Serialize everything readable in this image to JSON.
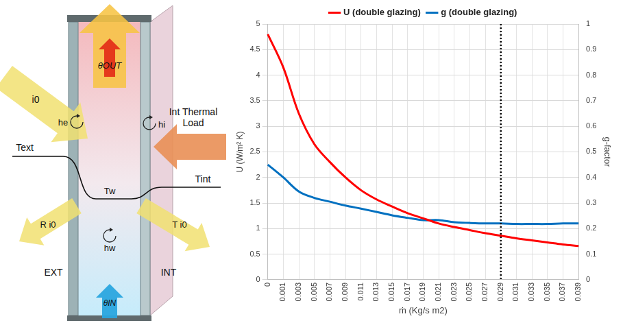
{
  "chart_data": {
    "type": "line",
    "x_label": "ṁ (Kg/s m2)",
    "y_label": "U (W/m² K)",
    "y2_label": "g-factor",
    "categories": [
      0,
      0.001,
      0.003,
      0.005,
      0.007,
      0.009,
      0.011,
      0.013,
      0.015,
      0.017,
      0.019,
      0.021,
      0.023,
      0.025,
      0.027,
      0.029,
      0.031,
      0.033,
      0.035,
      0.037,
      0.039
    ],
    "series": [
      {
        "name": "U (double glazing)",
        "color": "#ff0000",
        "values": [
          4.8,
          4.15,
          3.25,
          2.65,
          2.3,
          2.0,
          1.75,
          1.57,
          1.43,
          1.3,
          1.2,
          1.1,
          1.03,
          0.97,
          0.91,
          0.86,
          0.81,
          0.77,
          0.73,
          0.69,
          0.66
        ]
      },
      {
        "name": "g (double glazing)",
        "color": "#0070c0",
        "axis": "y2",
        "values": [
          0.45,
          0.4,
          0.345,
          0.32,
          0.305,
          0.29,
          0.278,
          0.265,
          0.252,
          0.242,
          0.233,
          0.233,
          0.225,
          0.222,
          0.22,
          0.22,
          0.218,
          0.218,
          0.218,
          0.22,
          0.22
        ]
      }
    ],
    "ylim": [
      0,
      5
    ],
    "yticks": [
      0,
      0.5,
      1,
      1.5,
      2,
      2.5,
      3,
      3.5,
      4,
      4.5,
      5
    ],
    "y2lim": [
      0,
      1
    ],
    "y2ticks": [
      0,
      0.1,
      0.2,
      0.3,
      0.4,
      0.5,
      0.6,
      0.7,
      0.8,
      0.9,
      1
    ],
    "grid": true,
    "legend": "top",
    "reference_line": {
      "x": 0.029,
      "line_style": "dotted"
    }
  },
  "diagram": {
    "labels": {
      "theta_out": "θOUT",
      "i0": "i0",
      "he": "he",
      "hi": "hi",
      "int_thermal_load": "Int Thermal Load",
      "text": "Text",
      "tw": "Tw",
      "tint": "Tint",
      "r_i0": "R i0",
      "hw": "hw",
      "t_i0": "T i0",
      "ext": "EXT",
      "int": "INT",
      "theta_in": "θIN"
    }
  }
}
